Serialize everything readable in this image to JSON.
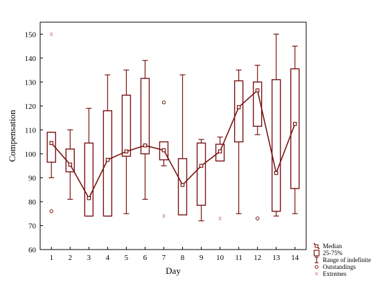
{
  "chart_data": {
    "type": "box",
    "title": "",
    "xlabel": "Day",
    "ylabel": "Compensation",
    "xlim": [
      0.4,
      14.6
    ],
    "ylim": [
      60,
      155
    ],
    "x_ticks": [
      1,
      2,
      3,
      4,
      5,
      6,
      7,
      8,
      9,
      10,
      11,
      12,
      13,
      14
    ],
    "y_ticks": [
      60,
      70,
      80,
      90,
      100,
      110,
      120,
      130,
      140,
      150
    ],
    "grid": false,
    "legend_position": "bottom-right",
    "colors": {
      "series": "#7a1414",
      "extreme": "#d9aaaa",
      "axis": "#000000"
    },
    "legend": [
      {
        "key": "median",
        "label": "Median"
      },
      {
        "key": "iqr",
        "label": "25-75%"
      },
      {
        "key": "range",
        "label": "Range of indefinite"
      },
      {
        "key": "outstanding",
        "label": "Outstandings"
      },
      {
        "key": "extreme",
        "label": "Extremes"
      }
    ],
    "boxes": [
      {
        "day": 1,
        "median": 104.5,
        "q1": 96.5,
        "q3": 109,
        "whisker_low": 90,
        "whisker_high": 109,
        "outliers": [
          76
        ],
        "extremes": [
          150
        ]
      },
      {
        "day": 2,
        "median": 95.5,
        "q1": 92.5,
        "q3": 102,
        "whisker_low": 81,
        "whisker_high": 110,
        "outliers": [],
        "extremes": []
      },
      {
        "day": 3,
        "median": 81.5,
        "q1": 74,
        "q3": 104.5,
        "whisker_low": 74,
        "whisker_high": 119,
        "outliers": [],
        "extremes": []
      },
      {
        "day": 4,
        "median": 97.5,
        "q1": 74,
        "q3": 118,
        "whisker_low": 74,
        "whisker_high": 133,
        "outliers": [],
        "extremes": []
      },
      {
        "day": 5,
        "median": 101,
        "q1": 99,
        "q3": 124.5,
        "whisker_low": 75,
        "whisker_high": 135,
        "outliers": [],
        "extremes": []
      },
      {
        "day": 6,
        "median": 103.5,
        "q1": 100,
        "q3": 131.5,
        "whisker_low": 81,
        "whisker_high": 139,
        "outliers": [],
        "extremes": []
      },
      {
        "day": 7,
        "median": 101.5,
        "q1": 97.5,
        "q3": 105,
        "whisker_low": 95,
        "whisker_high": 105,
        "outliers": [
          121.5
        ],
        "extremes": [
          74
        ]
      },
      {
        "day": 8,
        "median": 87,
        "q1": 74.5,
        "q3": 98,
        "whisker_low": 74.5,
        "whisker_high": 133,
        "outliers": [],
        "extremes": []
      },
      {
        "day": 9,
        "median": 95,
        "q1": 78.5,
        "q3": 104.5,
        "whisker_low": 72,
        "whisker_high": 106,
        "outliers": [],
        "extremes": []
      },
      {
        "day": 10,
        "median": 101,
        "q1": 97,
        "q3": 104,
        "whisker_low": 97,
        "whisker_high": 107,
        "outliers": [],
        "extremes": [
          73
        ]
      },
      {
        "day": 11,
        "median": 119.5,
        "q1": 105,
        "q3": 130.5,
        "whisker_low": 75,
        "whisker_high": 135,
        "outliers": [],
        "extremes": []
      },
      {
        "day": 12,
        "median": 126.5,
        "q1": 111.5,
        "q3": 130,
        "whisker_low": 108,
        "whisker_high": 137,
        "outliers": [
          73
        ],
        "extremes": []
      },
      {
        "day": 13,
        "median": 92,
        "q1": 76,
        "q3": 131,
        "whisker_low": 74,
        "whisker_high": 150,
        "outliers": [],
        "extremes": []
      },
      {
        "day": 14,
        "median": 112.5,
        "q1": 85.5,
        "q3": 135.5,
        "whisker_low": 75,
        "whisker_high": 145,
        "outliers": [],
        "extremes": []
      }
    ]
  }
}
